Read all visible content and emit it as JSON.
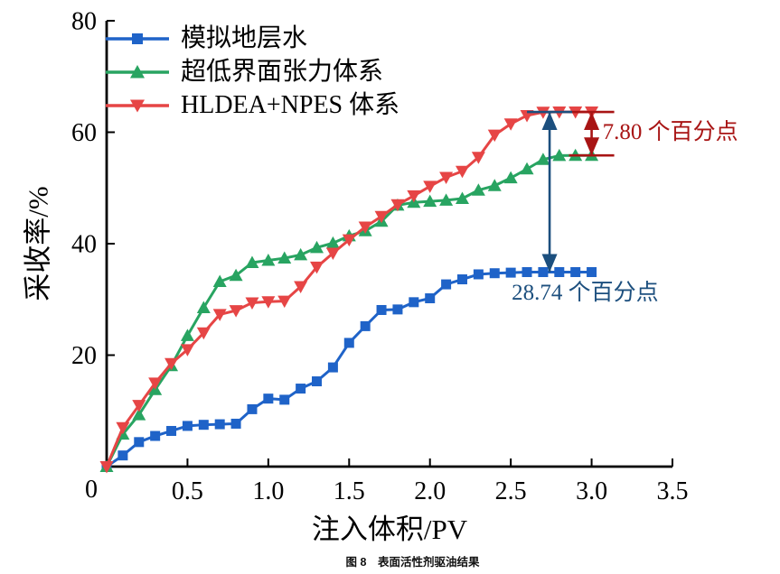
{
  "figure": {
    "caption": "图 8　表面活性剂驱油结果"
  },
  "chart_data": {
    "type": "line",
    "title": "",
    "xlabel": "注入体积/PV",
    "ylabel": "采收率/%",
    "xlim": [
      0,
      3.5
    ],
    "ylim": [
      0,
      80
    ],
    "x_ticks": [
      "0",
      "0.5",
      "1.0",
      "1.5",
      "2.0",
      "2.5",
      "3.0",
      "3.5"
    ],
    "y_ticks": [
      "0",
      "20",
      "40",
      "60",
      "80"
    ],
    "grid": false,
    "legend_position": "top-left-inside",
    "x": [
      0,
      0.1,
      0.2,
      0.3,
      0.4,
      0.5,
      0.6,
      0.7,
      0.8,
      0.9,
      1.0,
      1.1,
      1.2,
      1.3,
      1.4,
      1.5,
      1.6,
      1.7,
      1.8,
      1.9,
      2.0,
      2.1,
      2.2,
      2.3,
      2.4,
      2.5,
      2.6,
      2.7,
      2.8,
      2.9,
      3.0
    ],
    "series": [
      {
        "name": "模拟地层水",
        "color": "#1f63c8",
        "marker": "square",
        "final_value": 34.9,
        "values": [
          0,
          2.0,
          4.4,
          5.5,
          6.4,
          7.3,
          7.5,
          7.6,
          7.7,
          10.3,
          12.2,
          12.0,
          14.0,
          15.3,
          17.8,
          22.2,
          25.2,
          28.1,
          28.2,
          29.5,
          30.2,
          32.7,
          33.6,
          34.5,
          34.7,
          34.8,
          34.9,
          34.9,
          34.9,
          34.9,
          34.9
        ]
      },
      {
        "name": "超低界面张力体系",
        "color": "#28a461",
        "marker": "triangle-up",
        "final_value": 55.84,
        "values": [
          0,
          5.8,
          9.3,
          13.8,
          18.1,
          23.5,
          28.5,
          33.2,
          34.3,
          36.6,
          37.0,
          37.4,
          38.0,
          39.3,
          40.1,
          41.4,
          42.3,
          44.0,
          46.9,
          47.4,
          47.6,
          47.8,
          48.1,
          49.6,
          50.4,
          51.8,
          53.4,
          55.1,
          55.8,
          55.84,
          55.84
        ]
      },
      {
        "name": "HLDEA+NPES 体系",
        "color": "#e64545",
        "marker": "triangle-down",
        "final_value": 63.64,
        "values": [
          0,
          7.0,
          11.0,
          15.0,
          18.5,
          21.0,
          24.0,
          27.3,
          28.0,
          29.4,
          29.6,
          29.7,
          32.3,
          35.8,
          38.3,
          40.7,
          43.0,
          44.9,
          47.0,
          48.6,
          50.3,
          51.9,
          53.0,
          55.5,
          59.5,
          61.5,
          63.0,
          63.6,
          63.64,
          63.64,
          63.64
        ]
      }
    ],
    "annotations": [
      {
        "id": "gap-hldea-vs-ultralow",
        "text": "7.80 个百分点",
        "value": 7.8,
        "color": "#a81414",
        "x_pv": 3.0,
        "y_from": 63.64,
        "y_to": 55.84,
        "caps": "both",
        "label_side": "right"
      },
      {
        "id": "gap-hldea-vs-water",
        "text": "28.74 个百分点",
        "value": 28.74,
        "color": "#1c4f7e",
        "x_pv": 2.74,
        "y_from": 63.64,
        "y_to": 34.9,
        "caps": "top",
        "label_side": "below"
      }
    ]
  }
}
